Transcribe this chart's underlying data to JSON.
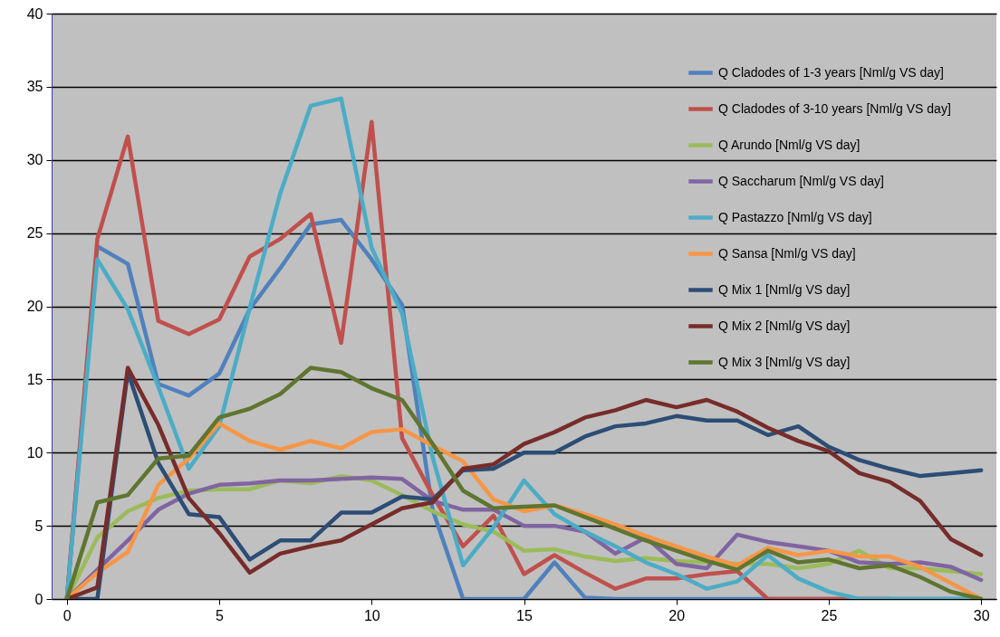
{
  "chart_data": {
    "type": "line",
    "x": [
      0,
      1,
      2,
      3,
      4,
      5,
      6,
      7,
      8,
      9,
      10,
      11,
      12,
      13,
      14,
      15,
      16,
      17,
      18,
      19,
      20,
      21,
      22,
      23,
      24,
      25,
      26,
      27,
      28,
      29,
      30
    ],
    "xlim": [
      -0.5,
      30.5
    ],
    "xticks": [
      0,
      5,
      10,
      15,
      20,
      25,
      30
    ],
    "ylim": [
      0,
      40
    ],
    "yticks": [
      0,
      5,
      10,
      15,
      20,
      25,
      30,
      35,
      40
    ],
    "grid": "y",
    "legend": "top right",
    "marker": "none",
    "line_style": "solid",
    "series": [
      {
        "name": "Q Cladodes of 1-3 years [Nml/g VS day]",
        "color": "#4f81bd",
        "values": [
          0,
          24.1,
          22.9,
          14.7,
          13.9,
          15.4,
          19.8,
          22.6,
          25.6,
          25.9,
          23.2,
          20.1,
          6.1,
          0,
          0,
          0,
          2.5,
          0.1,
          0,
          0,
          0,
          0,
          0,
          0,
          0,
          0,
          0,
          0,
          0,
          0,
          0
        ]
      },
      {
        "name": "Q Cladodes of 3-10 years [Nml/g VS day]",
        "color": "#c0504d",
        "values": [
          0,
          24.6,
          31.6,
          19.0,
          18.1,
          19.1,
          23.4,
          24.6,
          26.3,
          17.5,
          32.6,
          11.0,
          7.1,
          3.6,
          5.7,
          1.7,
          3.0,
          1.8,
          0.7,
          1.4,
          1.4,
          1.7,
          1.9,
          0,
          0,
          0,
          0,
          0,
          null,
          null,
          null
        ]
      },
      {
        "name": "Q Arundo [Nml/g VS day]",
        "color": "#9bbb59",
        "values": [
          0,
          4.2,
          6.0,
          6.9,
          7.4,
          7.5,
          7.5,
          8.1,
          7.9,
          8.4,
          8.1,
          7.1,
          6.0,
          5.1,
          4.6,
          3.3,
          3.4,
          2.9,
          2.6,
          2.8,
          2.6,
          2.5,
          2.4,
          2.4,
          2.1,
          2.4,
          3.3,
          2.1,
          2.1,
          1.9,
          1.7
        ]
      },
      {
        "name": "Q Saccharum [Nml/g VS day]",
        "color": "#8064a2",
        "values": [
          0,
          2.0,
          4.0,
          6.1,
          7.2,
          7.8,
          7.9,
          8.1,
          8.1,
          8.2,
          8.3,
          8.2,
          6.7,
          6.1,
          6.1,
          5.0,
          5.0,
          4.6,
          3.1,
          4.2,
          2.4,
          2.1,
          4.4,
          3.9,
          3.6,
          3.3,
          2.5,
          2.4,
          2.5,
          2.2,
          1.3
        ]
      },
      {
        "name": "Q Pastazzo [Nml/g VS day]",
        "color": "#4bacc6",
        "values": [
          0,
          23.2,
          19.8,
          14.5,
          8.9,
          11.8,
          19.9,
          27.7,
          33.7,
          34.2,
          24.0,
          19.5,
          9.7,
          2.3,
          4.9,
          8.1,
          5.8,
          4.6,
          3.6,
          2.5,
          1.7,
          0.7,
          1.2,
          3.0,
          1.4,
          0.5,
          0,
          0,
          0,
          0,
          0
        ]
      },
      {
        "name": "Q Sansa [Nml/g VS day]",
        "color": "#f79646",
        "values": [
          0,
          1.8,
          3.2,
          7.8,
          9.6,
          12.0,
          10.8,
          10.2,
          10.8,
          10.3,
          11.4,
          11.6,
          10.5,
          9.4,
          6.8,
          6.0,
          6.4,
          5.8,
          5.1,
          4.3,
          3.6,
          2.9,
          2.3,
          3.5,
          3.0,
          3.3,
          2.9,
          2.9,
          2.2,
          1.1,
          0
        ]
      },
      {
        "name": "Q Mix 1 [Nml/g VS day]",
        "color": "#2c4d75",
        "values": [
          0,
          0,
          15.5,
          9.3,
          5.8,
          5.6,
          2.7,
          4.0,
          4.0,
          5.9,
          5.9,
          7.0,
          6.8,
          8.8,
          8.9,
          10.0,
          10.0,
          11.1,
          11.8,
          12.0,
          12.5,
          12.2,
          12.2,
          11.2,
          11.8,
          10.4,
          9.5,
          8.9,
          8.4,
          8.6,
          8.8
        ]
      },
      {
        "name": "Q Mix 2 [Nml/g VS day]",
        "color": "#772c2a",
        "values": [
          0,
          0.8,
          15.8,
          11.9,
          6.9,
          4.5,
          1.8,
          3.1,
          3.6,
          4.0,
          5.1,
          6.2,
          6.6,
          8.9,
          9.2,
          10.6,
          11.4,
          12.4,
          12.9,
          13.6,
          13.1,
          13.6,
          12.8,
          11.7,
          10.8,
          10.1,
          8.6,
          8.0,
          6.7,
          4.1,
          3.0
        ]
      },
      {
        "name": "Q Mix 3 [Nml/g VS day]",
        "color": "#5f7530",
        "values": [
          0,
          6.6,
          7.1,
          9.6,
          9.8,
          12.4,
          13.0,
          14.0,
          15.8,
          15.5,
          14.4,
          13.6,
          10.6,
          7.4,
          6.2,
          6.3,
          6.4,
          5.6,
          4.8,
          4.0,
          3.3,
          2.6,
          2.0,
          3.3,
          2.5,
          2.7,
          2.1,
          2.3,
          1.5,
          0.5,
          0
        ]
      }
    ]
  }
}
